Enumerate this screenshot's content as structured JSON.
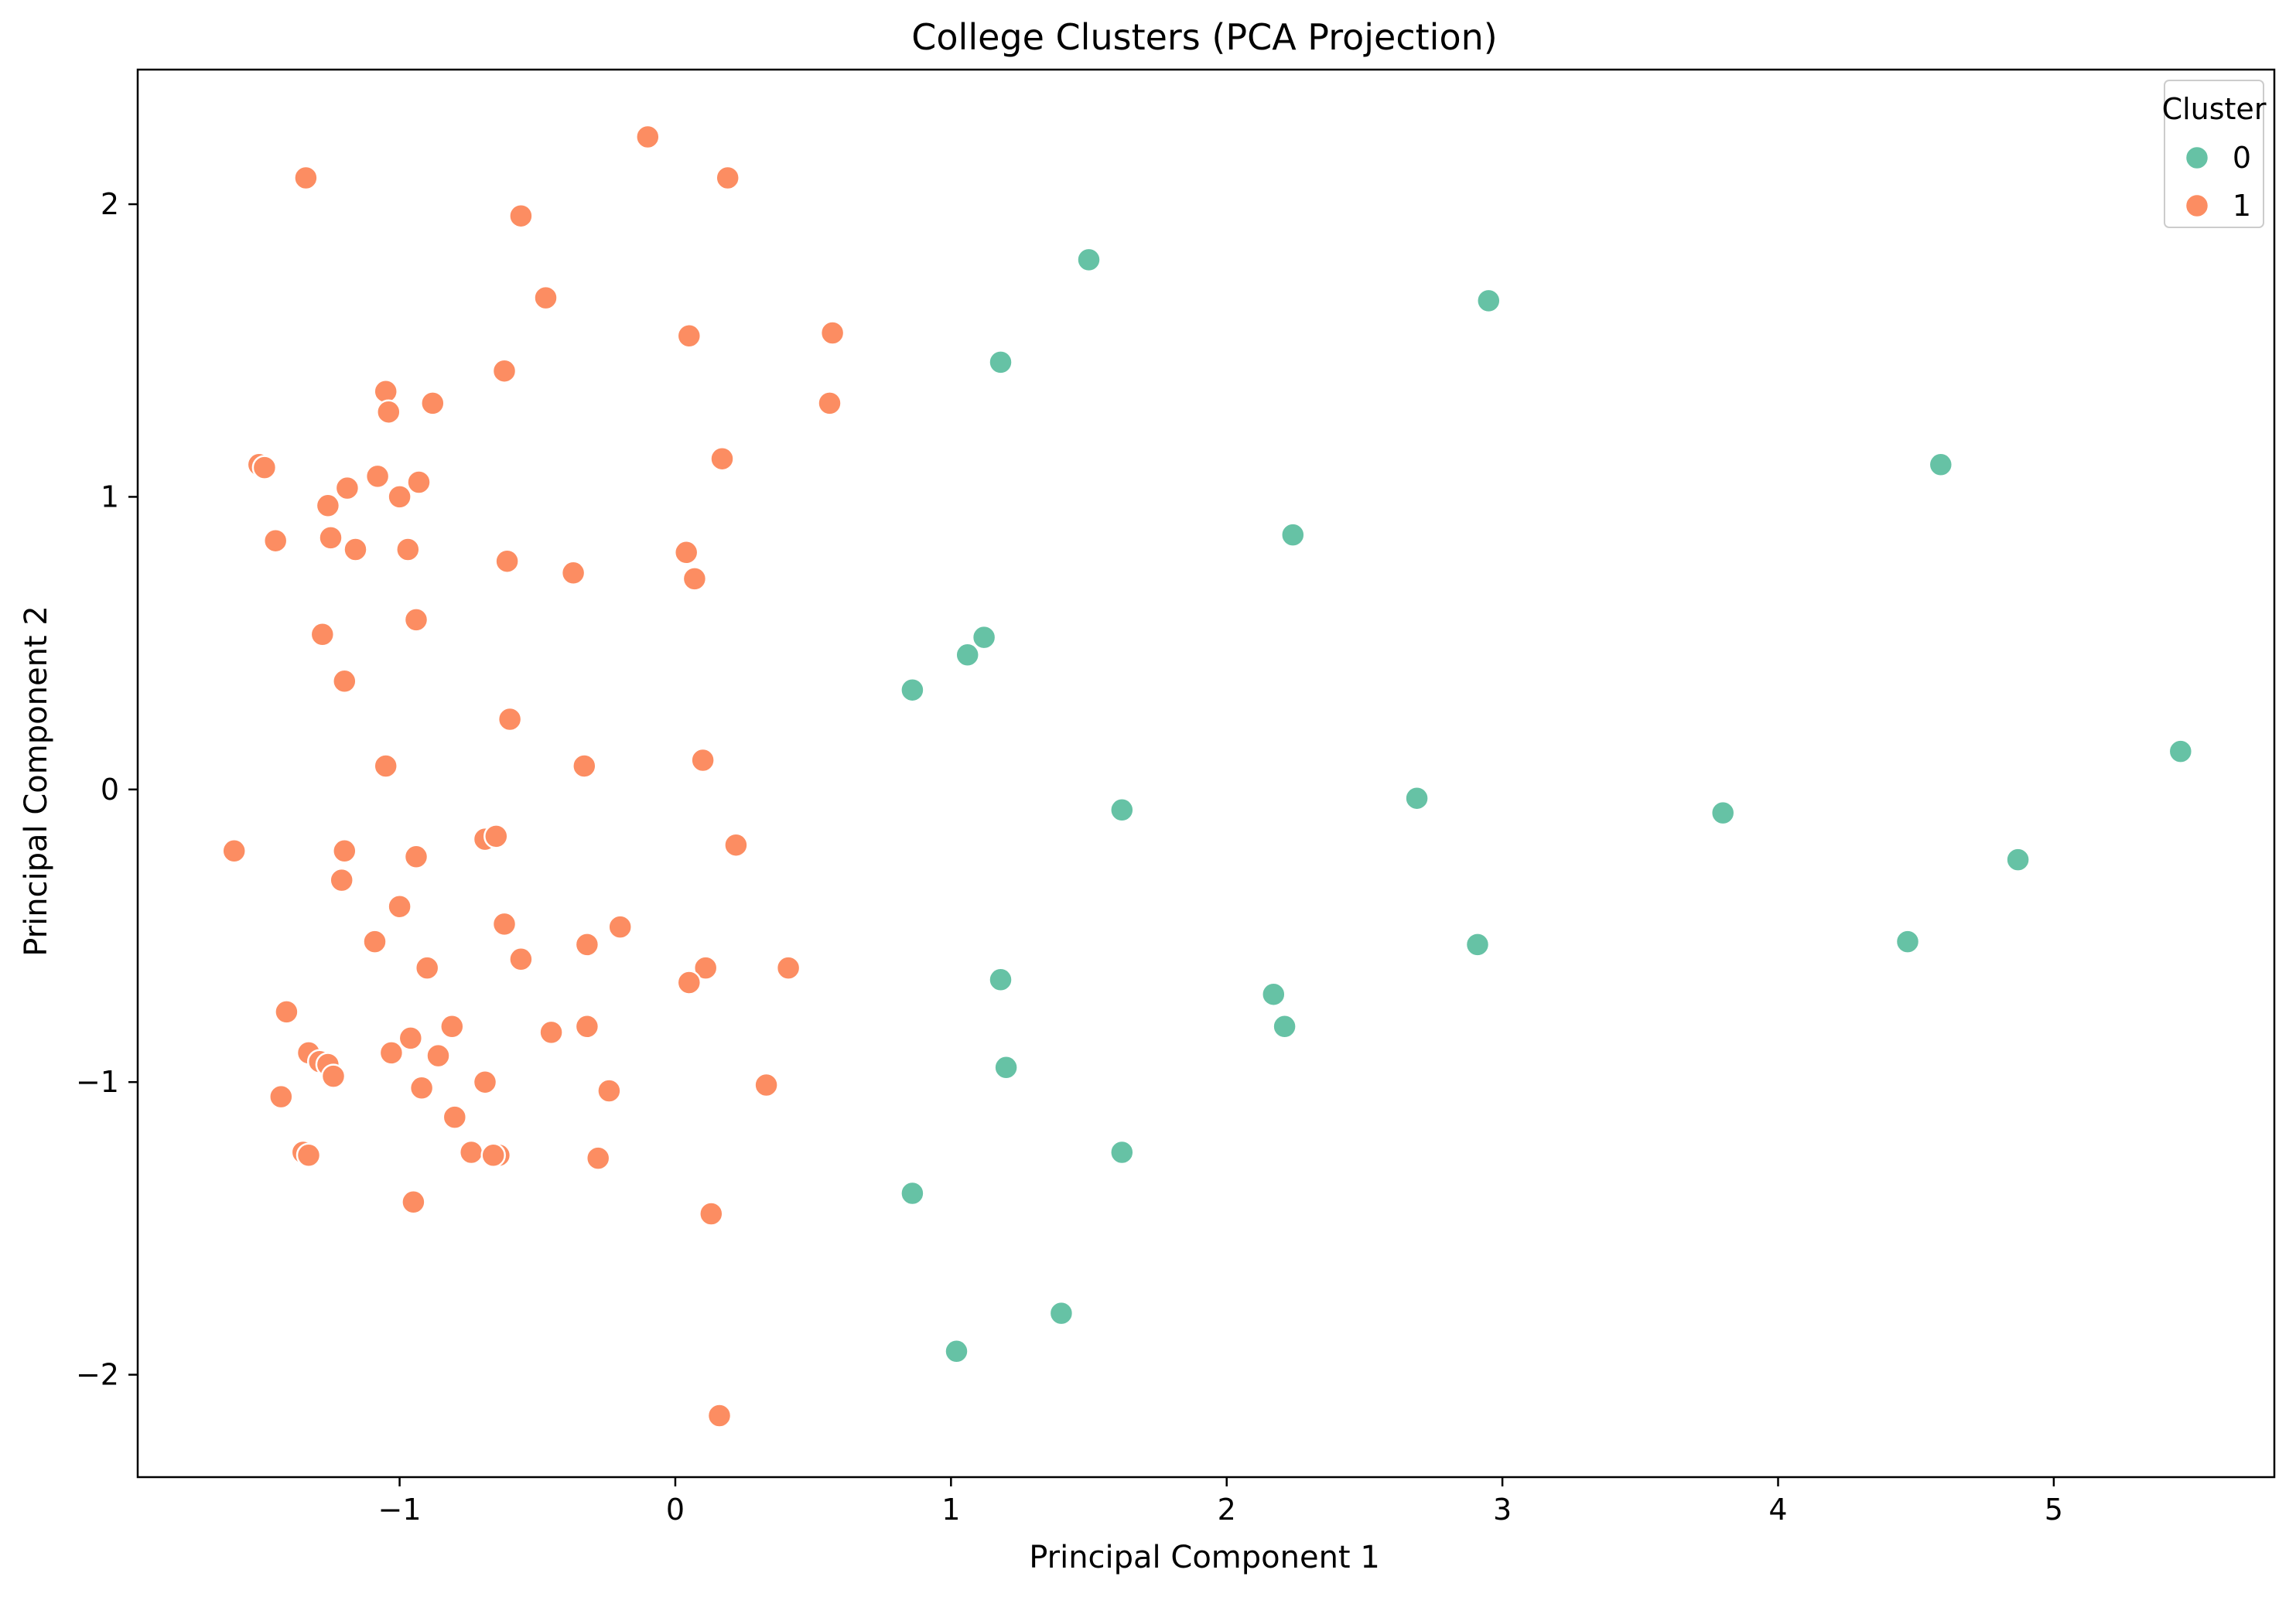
{
  "chart_data": {
    "type": "scatter",
    "title": "College Clusters (PCA Projection)",
    "xlabel": "Principal Component 1",
    "ylabel": "Principal Component 2",
    "xlim": [
      -1.95,
      5.8
    ],
    "ylim": [
      -2.35,
      2.46
    ],
    "xticks": [
      -1,
      0,
      1,
      2,
      3,
      4,
      5
    ],
    "yticks": [
      -2,
      -1,
      0,
      1,
      2
    ],
    "grid": false,
    "legend": {
      "title": "Cluster",
      "placement": "top-right"
    },
    "series": [
      {
        "name": "0",
        "color": "#66c2a5",
        "points": [
          [
            1.5,
            1.81
          ],
          [
            2.95,
            1.67
          ],
          [
            1.18,
            1.46
          ],
          [
            4.59,
            1.11
          ],
          [
            2.24,
            0.87
          ],
          [
            1.12,
            0.52
          ],
          [
            1.06,
            0.46
          ],
          [
            0.86,
            0.34
          ],
          [
            5.46,
            0.13
          ],
          [
            2.69,
            -0.03
          ],
          [
            1.62,
            -0.07
          ],
          [
            3.8,
            -0.08
          ],
          [
            4.87,
            -0.24
          ],
          [
            4.47,
            -0.52
          ],
          [
            2.91,
            -0.53
          ],
          [
            1.18,
            -0.65
          ],
          [
            2.17,
            -0.7
          ],
          [
            2.21,
            -0.81
          ],
          [
            1.2,
            -0.95
          ],
          [
            1.62,
            -1.24
          ],
          [
            0.86,
            -1.38
          ],
          [
            1.4,
            -1.79
          ],
          [
            1.02,
            -1.92
          ]
        ]
      },
      {
        "name": "1",
        "color": "#fc8d62",
        "points": [
          [
            -0.1,
            2.23
          ],
          [
            -1.34,
            2.09
          ],
          [
            0.19,
            2.09
          ],
          [
            -0.56,
            1.96
          ],
          [
            -0.47,
            1.68
          ],
          [
            0.57,
            1.56
          ],
          [
            0.05,
            1.55
          ],
          [
            -0.62,
            1.43
          ],
          [
            -1.05,
            1.36
          ],
          [
            -0.88,
            1.32
          ],
          [
            0.56,
            1.32
          ],
          [
            -1.04,
            1.29
          ],
          [
            -1.51,
            1.11
          ],
          [
            -1.49,
            1.1
          ],
          [
            0.17,
            1.13
          ],
          [
            -1.08,
            1.07
          ],
          [
            -0.93,
            1.05
          ],
          [
            -1.19,
            1.03
          ],
          [
            -1.0,
            1.0
          ],
          [
            -1.26,
            0.97
          ],
          [
            -1.25,
            0.86
          ],
          [
            -1.45,
            0.85
          ],
          [
            -1.16,
            0.82
          ],
          [
            -0.97,
            0.82
          ],
          [
            0.04,
            0.81
          ],
          [
            -0.61,
            0.78
          ],
          [
            -0.37,
            0.74
          ],
          [
            0.07,
            0.72
          ],
          [
            -0.94,
            0.58
          ],
          [
            -1.28,
            0.53
          ],
          [
            -1.2,
            0.37
          ],
          [
            -0.6,
            0.24
          ],
          [
            0.1,
            0.1
          ],
          [
            -1.05,
            0.08
          ],
          [
            -0.33,
            0.08
          ],
          [
            -1.6,
            -0.21
          ],
          [
            -1.2,
            -0.21
          ],
          [
            -0.69,
            -0.17
          ],
          [
            -0.65,
            -0.16
          ],
          [
            0.22,
            -0.19
          ],
          [
            -0.94,
            -0.23
          ],
          [
            -1.21,
            -0.31
          ],
          [
            -1.0,
            -0.4
          ],
          [
            -0.62,
            -0.46
          ],
          [
            -0.2,
            -0.47
          ],
          [
            -1.09,
            -0.52
          ],
          [
            -0.32,
            -0.53
          ],
          [
            -0.56,
            -0.58
          ],
          [
            -0.9,
            -0.61
          ],
          [
            0.11,
            -0.61
          ],
          [
            0.41,
            -0.61
          ],
          [
            0.05,
            -0.66
          ],
          [
            -1.41,
            -0.76
          ],
          [
            -0.81,
            -0.81
          ],
          [
            -0.32,
            -0.81
          ],
          [
            -0.45,
            -0.83
          ],
          [
            -0.96,
            -0.85
          ],
          [
            -1.33,
            -0.9
          ],
          [
            -1.03,
            -0.9
          ],
          [
            -0.86,
            -0.91
          ],
          [
            -1.29,
            -0.93
          ],
          [
            -1.26,
            -0.94
          ],
          [
            -1.24,
            -0.98
          ],
          [
            -0.69,
            -1.0
          ],
          [
            0.33,
            -1.01
          ],
          [
            -0.92,
            -1.02
          ],
          [
            -0.24,
            -1.03
          ],
          [
            -1.43,
            -1.05
          ],
          [
            -0.8,
            -1.12
          ],
          [
            -1.35,
            -1.24
          ],
          [
            -0.74,
            -1.24
          ],
          [
            -1.33,
            -1.25
          ],
          [
            -0.64,
            -1.25
          ],
          [
            -0.66,
            -1.25
          ],
          [
            -0.28,
            -1.26
          ],
          [
            -0.95,
            -1.41
          ],
          [
            0.13,
            -1.45
          ],
          [
            0.16,
            -2.14
          ]
        ]
      }
    ]
  }
}
